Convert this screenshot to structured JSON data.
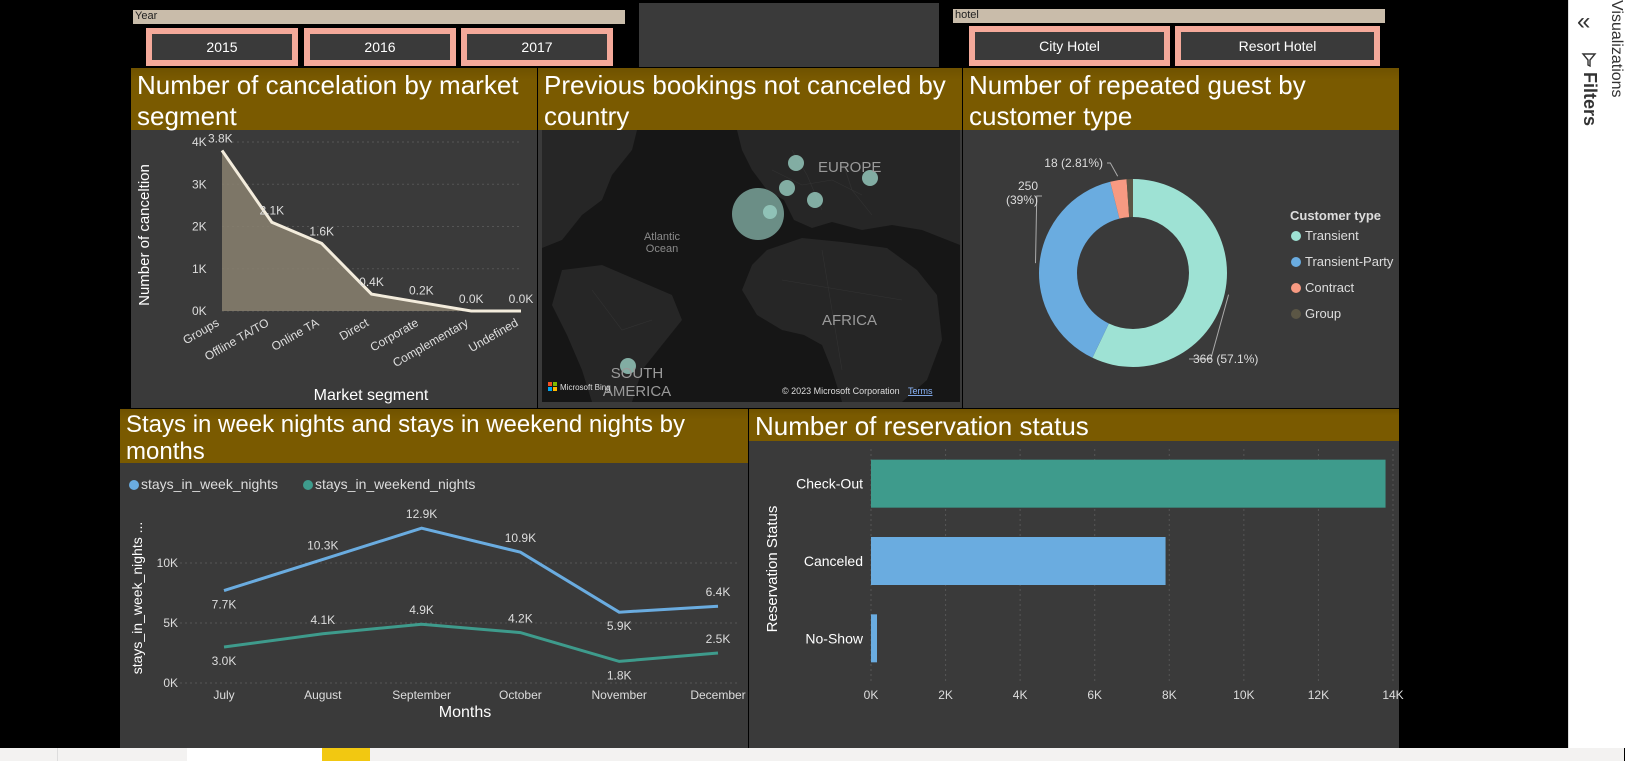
{
  "slicers": {
    "year": {
      "header": "Year",
      "options": [
        "2015",
        "2016",
        "2017"
      ]
    },
    "hotel": {
      "header": "hotel",
      "options": [
        "City Hotel",
        "Resort Hotel"
      ]
    }
  },
  "panels": {
    "cancel": {
      "title": "Number of cancelation by market segment"
    },
    "map": {
      "title": "Previous bookings not canceled by country"
    },
    "donut": {
      "title": "Number of repeated guest by customer type"
    },
    "stays": {
      "title": "Stays in week nights and stays in weekend nights by months"
    },
    "status": {
      "title": "Number of reservation status"
    }
  },
  "map": {
    "labels": {
      "europe": "EUROPE",
      "atlantic": "Atlantic\nOcean",
      "africa": "AFRICA",
      "south_america": "SOUTH\nAMERICA"
    },
    "credit_brand": "Microsoft Bing",
    "credit_copy": "© 2023 Microsoft Corporation",
    "credit_terms": "Terms"
  },
  "side_pane": {
    "filters_label": "Filters",
    "visualizations_label": "Visualizations",
    "collapse_icon": "double-chevron-left-icon",
    "filter_icon": "filter-funnel-icon"
  },
  "colors": {
    "title_band": "#7a5a00",
    "slicer_accent": "#f4a99a",
    "teal": "#3e9b8c",
    "blue": "#6aace0",
    "mint": "#9ee2d4",
    "salmon": "#f79a82",
    "dark_olive": "#5b5645"
  },
  "chart_data": [
    {
      "type": "area",
      "title": "Number of cancelation by market segment",
      "xlabel": "Market segment",
      "ylabel": "Number of canceltion",
      "categories": [
        "Groups",
        "Offline TA/TO",
        "Online TA",
        "Direct",
        "Corporate",
        "Complementary",
        "Undefined"
      ],
      "values": [
        3800,
        2100,
        1600,
        400,
        200,
        0,
        0
      ],
      "data_labels": [
        "3.8K",
        "2.1K",
        "1.6K",
        "0.4K",
        "0.2K",
        "0.0K",
        "0.0K"
      ],
      "yticks": [
        "0K",
        "1K",
        "2K",
        "3K",
        "4K"
      ],
      "ylim": [
        0,
        4000
      ]
    },
    {
      "type": "pie",
      "title": "Number of repeated guest by customer type",
      "legend_title": "Customer type",
      "legend_position": "right",
      "slices": [
        {
          "name": "Transient",
          "value": 366,
          "label": "366 (57.1%)",
          "color": "#9ee2d4"
        },
        {
          "name": "Transient-Party",
          "value": 250,
          "label": "250 (39%)",
          "color": "#6aace0"
        },
        {
          "name": "Contract",
          "value": 18,
          "label": "18 (2.81%)",
          "color": "#f79a82"
        },
        {
          "name": "Group",
          "value": 7,
          "label": "",
          "color": "#5b5645"
        }
      ]
    },
    {
      "type": "line",
      "title": "Stays in week nights and stays in weekend nights by months",
      "xlabel": "Months",
      "ylabel": "stays_in_week_nights ...",
      "categories": [
        "July",
        "August",
        "September",
        "October",
        "November",
        "December"
      ],
      "yticks": [
        "0K",
        "5K",
        "10K"
      ],
      "ylim": [
        0,
        14000
      ],
      "legend_position": "top-left",
      "series": [
        {
          "name": "stays_in_week_nights",
          "color": "#6aace0",
          "values": [
            7700,
            10300,
            12900,
            10900,
            5900,
            6400
          ],
          "labels": [
            "7.7K",
            "10.3K",
            "12.9K",
            "10.9K",
            "5.9K",
            "6.4K"
          ]
        },
        {
          "name": "stays_in_weekend_nights",
          "color": "#3e9b8c",
          "values": [
            3000,
            4100,
            4900,
            4200,
            1800,
            2500
          ],
          "labels": [
            "3.0K",
            "4.1K",
            "4.9K",
            "4.2K",
            "1.8K",
            "2.5K"
          ]
        }
      ]
    },
    {
      "type": "bar",
      "orientation": "horizontal",
      "title": "Number of reservation status",
      "ylabel": "Reservation Status",
      "categories": [
        "Check-Out",
        "Canceled",
        "No-Show"
      ],
      "values": [
        13800,
        7900,
        100
      ],
      "colors": [
        "#3e9b8c",
        "#6aace0",
        "#6aace0"
      ],
      "xticks": [
        "0K",
        "2K",
        "4K",
        "6K",
        "8K",
        "10K",
        "12K",
        "14K"
      ],
      "xlim": [
        0,
        14000
      ],
      "grid": true
    }
  ]
}
